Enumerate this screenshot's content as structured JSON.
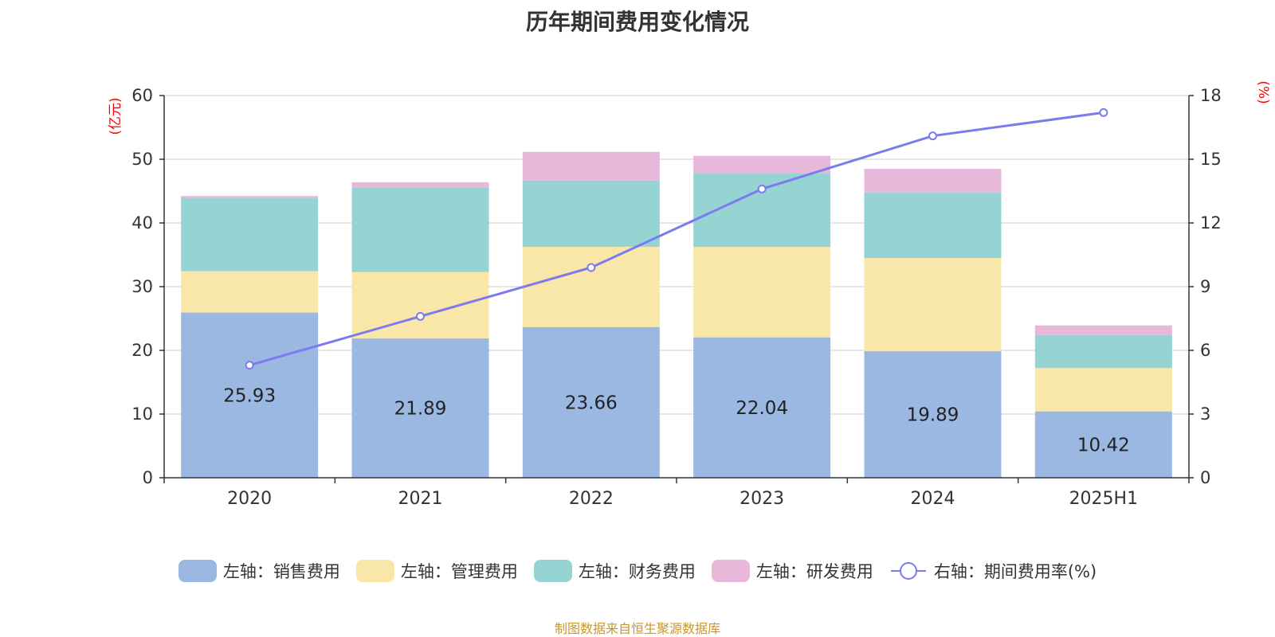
{
  "title": "历年期间费用变化情况",
  "source_note": "制图数据来自恒生聚源数据库",
  "colors": {
    "sales": "#9bb8e2",
    "admin": "#f8e7a8",
    "finance": "#96d4d4",
    "rd": "#e8b8da",
    "rate_line": "#7b7bef",
    "grid": "#cccccc",
    "axis_unit": "#ff0000",
    "text": "#333333"
  },
  "legend": [
    {
      "label": "左轴：销售费用",
      "color": "#9bb8e2",
      "kind": "box"
    },
    {
      "label": "左轴：管理费用",
      "color": "#f8e7a8",
      "kind": "box"
    },
    {
      "label": "左轴：财务费用",
      "color": "#96d4d4",
      "kind": "box"
    },
    {
      "label": "左轴：研发费用",
      "color": "#e8b8da",
      "kind": "box"
    },
    {
      "label": "右轴：期间费用率(%)",
      "color": "#7b7bef",
      "kind": "line"
    }
  ],
  "chart_data": {
    "type": "bar",
    "stacked": true,
    "categories": [
      "2020",
      "2021",
      "2022",
      "2023",
      "2024",
      "2025H1"
    ],
    "y_left": {
      "unit": "(亿元)",
      "ticks": [
        "0",
        "10",
        "20",
        "30",
        "40",
        "50",
        "60"
      ],
      "range": [
        0,
        60
      ]
    },
    "y_right": {
      "unit": "(%)",
      "ticks": [
        "0",
        "3",
        "6",
        "9",
        "12",
        "15",
        "18"
      ],
      "range": [
        0,
        18
      ]
    },
    "series": [
      {
        "name": "左轴：销售费用",
        "axis": "left",
        "type": "bar",
        "values": [
          25.93,
          21.89,
          23.66,
          22.04,
          19.89,
          10.42
        ],
        "data_labels": [
          "25.93",
          "21.89",
          "23.66",
          "22.04",
          "19.89",
          "10.42"
        ]
      },
      {
        "name": "左轴：管理费用",
        "axis": "left",
        "type": "bar",
        "values": [
          6.5,
          10.4,
          12.6,
          14.2,
          14.6,
          6.8
        ]
      },
      {
        "name": "左轴：财务费用",
        "axis": "left",
        "type": "bar",
        "values": [
          11.5,
          13.3,
          10.4,
          11.6,
          10.3,
          5.2
        ]
      },
      {
        "name": "左轴：研发费用",
        "axis": "left",
        "type": "bar",
        "values": [
          0.3,
          0.8,
          4.5,
          2.7,
          3.7,
          1.5
        ]
      },
      {
        "name": "右轴：期间费用率(%)",
        "axis": "right",
        "type": "line",
        "values": [
          5.3,
          7.6,
          9.9,
          13.6,
          16.1,
          17.2
        ]
      }
    ],
    "grid": true,
    "legend_position": "bottom"
  }
}
